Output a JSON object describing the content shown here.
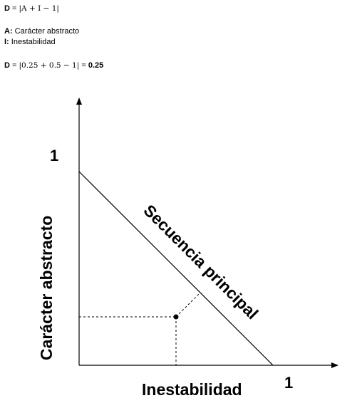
{
  "formula": {
    "d_label": "D",
    "equals": " = ",
    "expression": "|A + I − 1|"
  },
  "legend": {
    "a_key": "A:",
    "a_text": " Carácter abstracto",
    "i_key": "I:",
    "i_text": " Inestabilidad"
  },
  "result": {
    "d_label": "D",
    "equals": " = ",
    "expression": "|0.25 + 0.5 − 1|",
    "equals2": " = ",
    "value": "0.25"
  },
  "diagram": {
    "y_axis_label": "Carácter abstracto",
    "x_axis_label": "Inestabilidad",
    "y_max_label": "1",
    "x_max_label": "1",
    "main_sequence_label": "Secuencia principal",
    "point": {
      "I": 0.5,
      "A": 0.25
    }
  }
}
